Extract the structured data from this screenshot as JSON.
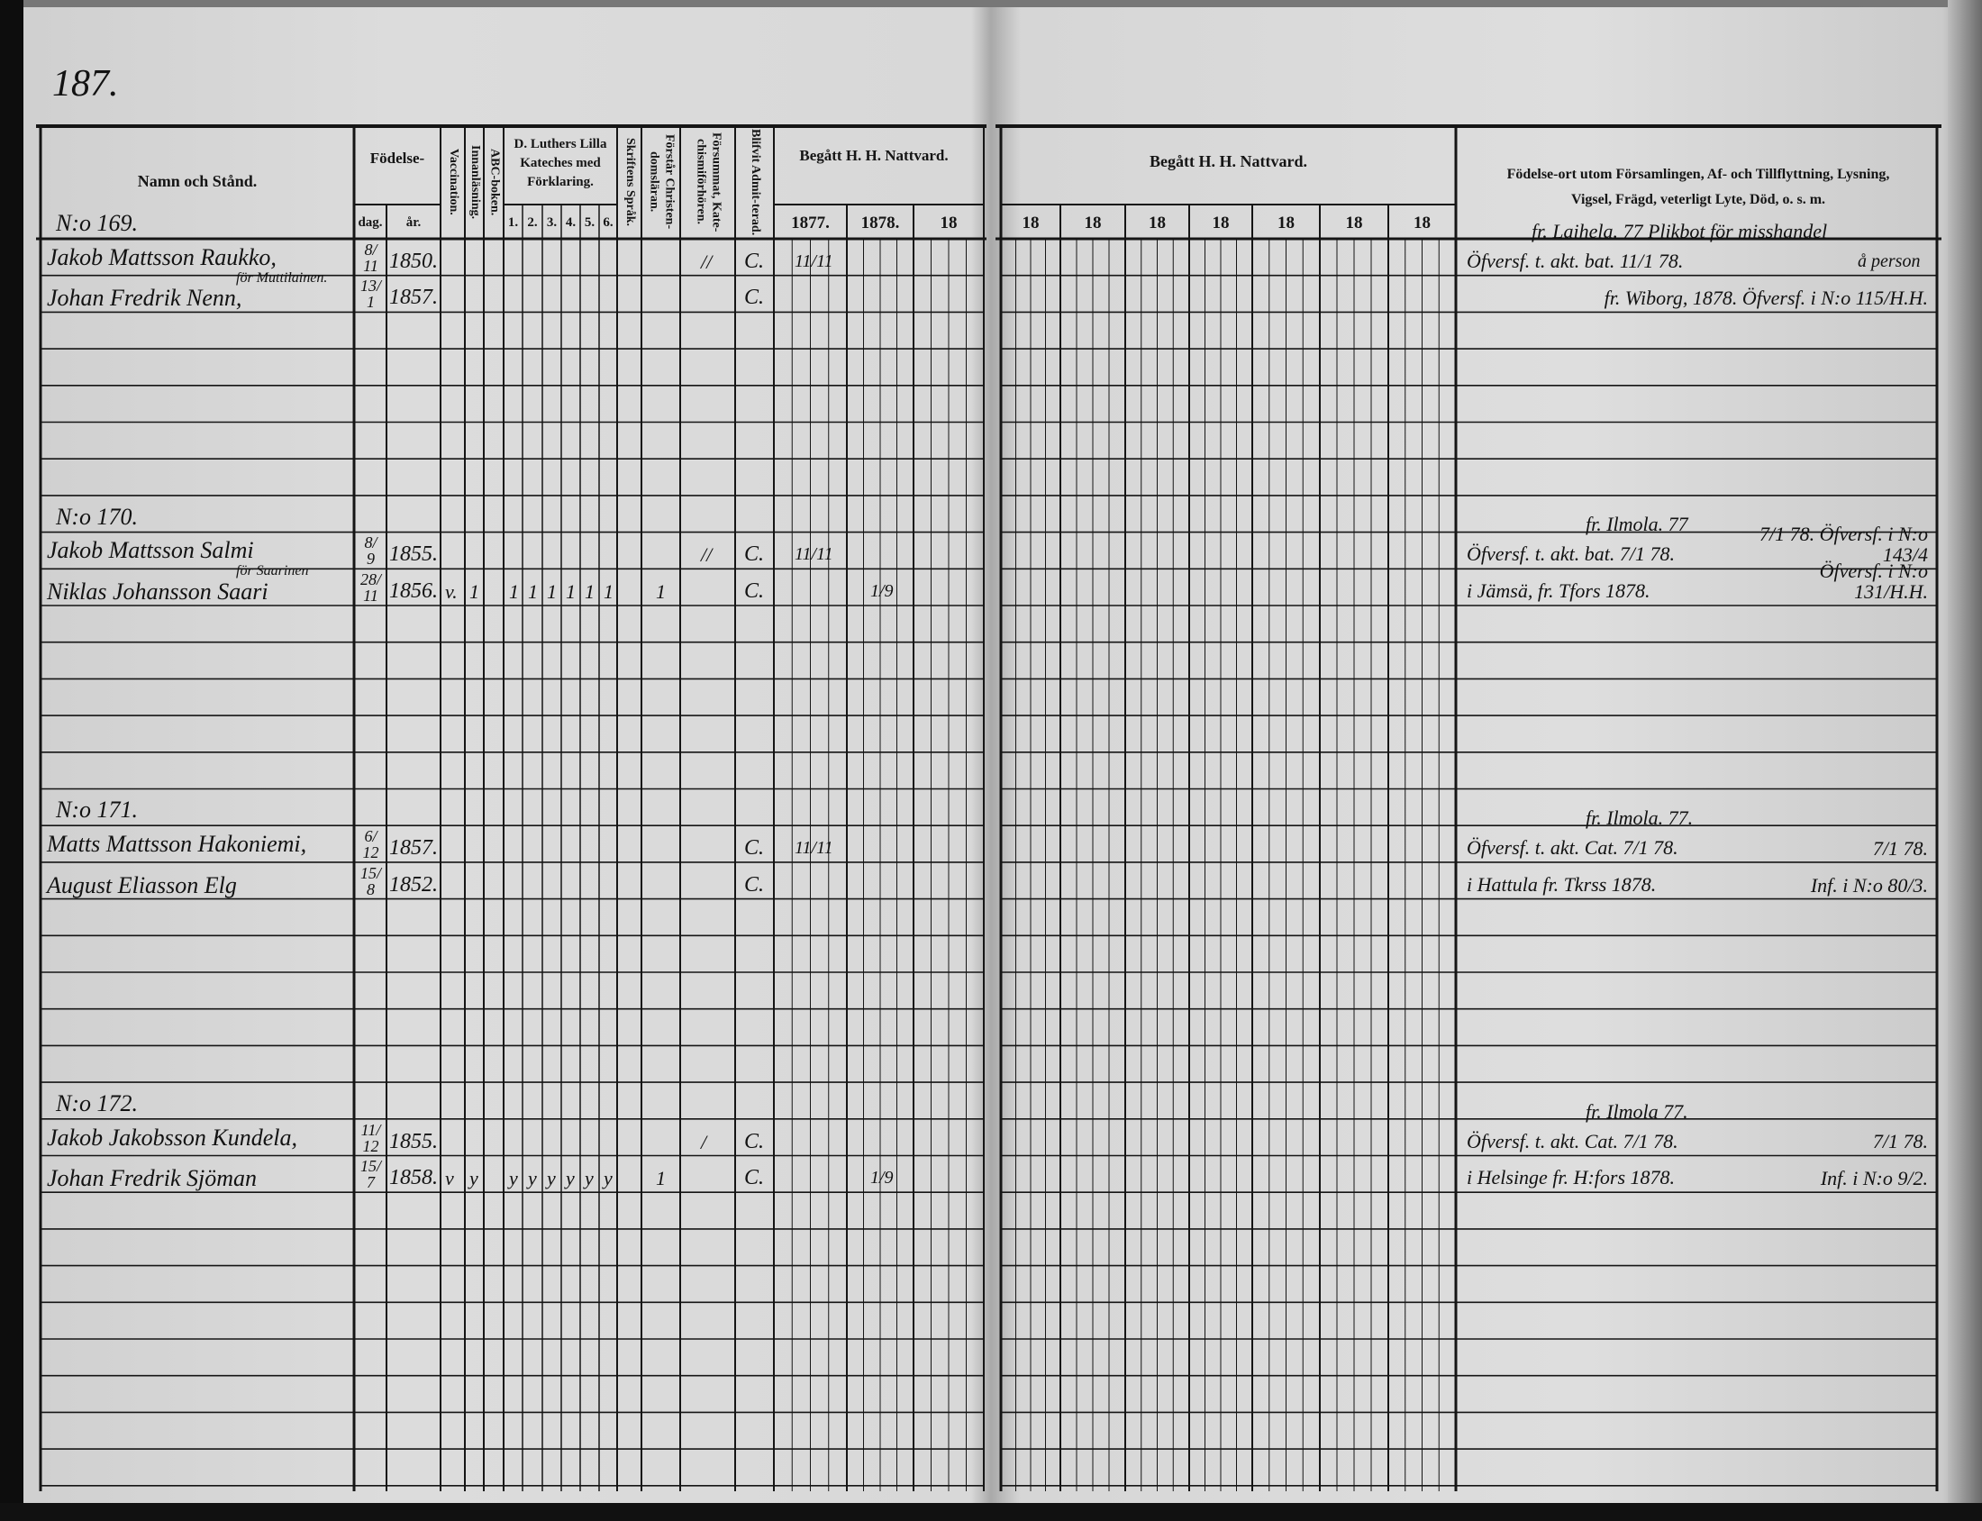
{
  "page_number": "187.",
  "left_header": {
    "name": "Namn och Stånd.",
    "birth": "Födelse-",
    "dag": "dag.",
    "ar": "år.",
    "vaccination": "Vaccination.",
    "innanlasning": "Innanläsning.",
    "abc": "ABC-boken.",
    "luther": "D. Luthers Lilla Kateches med Förklaring.",
    "luther_cols": [
      "1.",
      "2.",
      "3.",
      "4.",
      "5.",
      "6."
    ],
    "skriftens": "Skriftens Språk.",
    "forstar": "Förstår Christen-domsläran.",
    "forsummat": "Försummat, Kate-chismiförhören.",
    "blifvit": "Blifvit Admit-terad.",
    "begatt": "Begått H. H. Nattvard.",
    "years": [
      "1877.",
      "1878.",
      "18"
    ]
  },
  "right_header": {
    "begatt": "Begått H. H. Nattvard.",
    "years": [
      "18",
      "18",
      "18",
      "18",
      "18",
      "18",
      "18"
    ],
    "remarks": "Födelse-ort utom Församlingen, Af- och Tillflyttning, Lysning, Vigsel, Frägd, veterligt Lyte, Död, o. s. m."
  },
  "entries": [
    {
      "no": "N:o 169.",
      "persons": [
        {
          "name": "Jakob Mattsson Raukko,",
          "note_above": "",
          "dag": "8/11",
          "ar": "1850.",
          "marks": {
            "forsummat": "//"
          },
          "admitted": "C.",
          "y1877": "11/11",
          "y1878": "",
          "remark_above": "fr. Laihela. 77  Plikbot för misshandel",
          "remark_extra": "å person",
          "remark_left": "Öfversf. t. akt. bat. 11/1 78.",
          "remark_right": ""
        },
        {
          "name": "Johan Fredrik Nenn,",
          "note_above": "för Muttilainen.",
          "dag": "13/1",
          "ar": "1857.",
          "marks": {},
          "admitted": "C.",
          "y1877": "",
          "y1878": "",
          "remark_above": "",
          "remark_extra": "",
          "remark_left": "",
          "remark_right": "fr. Wiborg, 1878.  Öfversf. i N:o 115/H.H."
        }
      ]
    },
    {
      "no": "N:o 170.",
      "persons": [
        {
          "name": "Jakob Mattsson Salmi",
          "note_above": "",
          "dag": "8/9",
          "ar": "1855.",
          "marks": {
            "forsummat": "//"
          },
          "admitted": "C.",
          "y1877": "11/11",
          "y1878": "",
          "remark_above": "fr. Ilmola. 77",
          "remark_extra": "",
          "remark_left": "Öfversf. t. akt. bat. 7/1 78.",
          "remark_right": "7/1 78. Öfversf. i N:o 143/4"
        },
        {
          "name": "Niklas Johansson Saari",
          "note_above": "för Saarinen",
          "dag": "28/11",
          "ar": "1856.",
          "marks": {
            "vacc": "v.",
            "innan": "1",
            "l1": "1",
            "l2": "1",
            "l3": "1",
            "l4": "1",
            "l5": "1",
            "l6": "1",
            "forstar": "1"
          },
          "admitted": "C.",
          "y1877": "",
          "y1878": "1/9",
          "remark_above": "",
          "remark_extra": "",
          "remark_left": "i Jämsä, fr. Tfors 1878.",
          "remark_right": "Öfversf. i N:o 131/H.H."
        }
      ]
    },
    {
      "no": "N:o 171.",
      "persons": [
        {
          "name": "Matts Mattsson Hakoniemi,",
          "note_above": "",
          "dag": "6/12",
          "ar": "1857.",
          "marks": {},
          "admitted": "C.",
          "y1877": "11/11",
          "y1878": "",
          "remark_above": "fr. Ilmola. 77.",
          "remark_extra": "",
          "remark_left": "Öfversf. t. akt. Cat. 7/1 78.",
          "remark_right": "7/1 78."
        },
        {
          "name": "August Eliasson Elg",
          "note_above": "",
          "dag": "15/8",
          "ar": "1852.",
          "marks": {},
          "admitted": "C.",
          "y1877": "",
          "y1878": "",
          "remark_above": "",
          "remark_extra": "",
          "remark_left": "i Hattula fr. Tkrss 1878.",
          "remark_right": "Inf. i N:o 80/3."
        }
      ]
    },
    {
      "no": "N:o 172.",
      "persons": [
        {
          "name": "Jakob Jakobsson Kundela,",
          "note_above": "",
          "dag": "11/12",
          "ar": "1855.",
          "marks": {
            "forsummat": "/"
          },
          "admitted": "C.",
          "y1877": "",
          "y1878": "",
          "remark_above": "fr. Ilmola 77.",
          "remark_extra": "",
          "remark_left": "Öfversf. t. akt. Cat. 7/1 78.",
          "remark_right": "7/1 78."
        },
        {
          "name": "Johan Fredrik Sjöman",
          "note_above": "",
          "dag": "15/7",
          "ar": "1858.",
          "marks": {
            "vacc": "v",
            "innan": "y",
            "l1": "y",
            "l2": "y",
            "l3": "y",
            "l4": "y",
            "l5": "y",
            "l6": "y",
            "forstar": "1"
          },
          "admitted": "C.",
          "y1877": "",
          "y1878": "1/9",
          "remark_above": "",
          "remark_extra": "",
          "remark_left": "i Helsinge fr. H:fors 1878.",
          "remark_right": "Inf. i N:o 9/2."
        }
      ]
    }
  ]
}
